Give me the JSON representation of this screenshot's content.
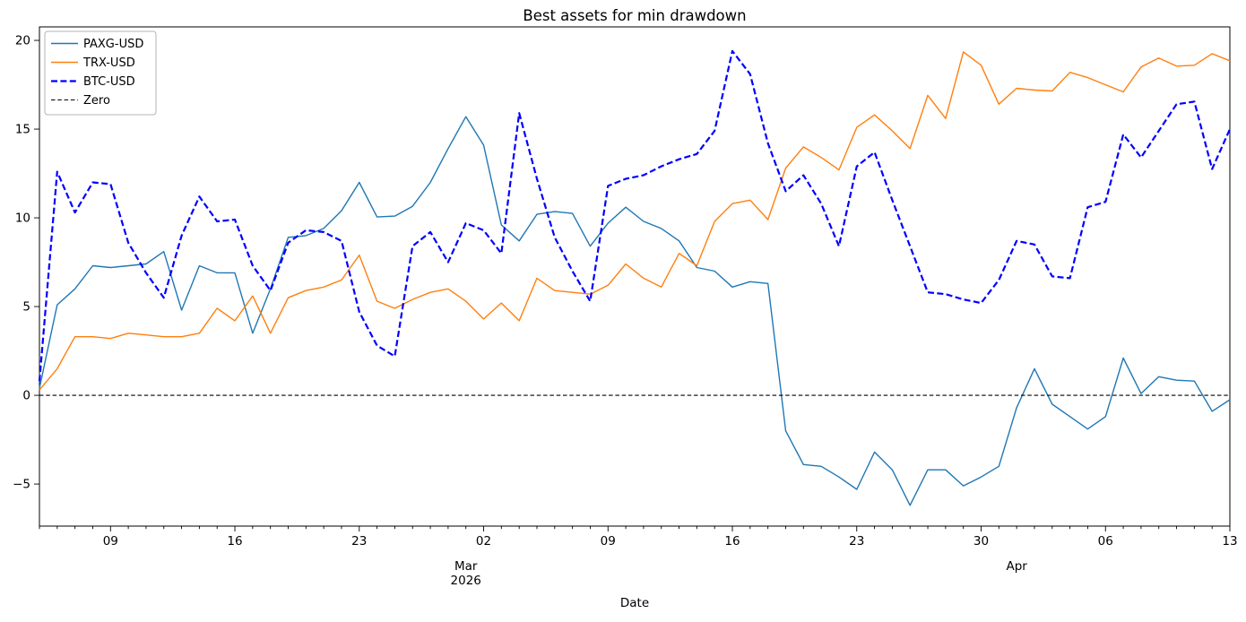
{
  "title": "Best assets for min drawdown",
  "xlabel": "Date",
  "legend": {
    "items": [
      {
        "label": "PAXG-USD",
        "color": "#1f77b4",
        "dash": "solid",
        "width": 1.5
      },
      {
        "label": "TRX-USD",
        "color": "#ff7f0e",
        "dash": "solid",
        "width": 1.5
      },
      {
        "label": "BTC-USD",
        "color": "#0000ff",
        "dash": "dashed",
        "width": 2.2
      },
      {
        "label": "Zero",
        "color": "#000000",
        "dash": "dashed",
        "width": 1.1
      }
    ]
  },
  "axes": {
    "ylim": [
      -7.37,
      20.76
    ],
    "y_ticks": [
      {
        "value": -5,
        "label": "−5"
      },
      {
        "value": 0,
        "label": "0"
      },
      {
        "value": 5,
        "label": "5"
      },
      {
        "value": 10,
        "label": "10"
      },
      {
        "value": 15,
        "label": "15"
      },
      {
        "value": 20,
        "label": "20"
      }
    ],
    "x_major_ticks": [
      {
        "day_index": 4,
        "label": "09"
      },
      {
        "day_index": 11,
        "label": "16"
      },
      {
        "day_index": 18,
        "label": "23"
      },
      {
        "day_index": 25,
        "label": "02"
      },
      {
        "day_index": 32,
        "label": "09"
      },
      {
        "day_index": 39,
        "label": "16"
      },
      {
        "day_index": 46,
        "label": "23"
      },
      {
        "day_index": 53,
        "label": "30"
      },
      {
        "day_index": 60,
        "label": "06"
      },
      {
        "day_index": 67,
        "label": "13"
      }
    ],
    "month_labels": [
      {
        "day_index": 24,
        "lines": [
          "Mar",
          "2026"
        ]
      },
      {
        "day_index": 55,
        "lines": [
          "Apr",
          ""
        ]
      }
    ]
  },
  "chart_data": {
    "type": "line",
    "title": "Best assets for min drawdown",
    "xlabel": "Date",
    "ylabel": "",
    "x_start_date": "2026-02-05",
    "x_end_date": "2026-04-13",
    "n_points": 68,
    "grid": false,
    "legend_position": "upper left",
    "zero_line": 0,
    "series": [
      {
        "name": "PAXG-USD",
        "color": "#1f77b4",
        "style": "solid",
        "values": [
          0.4,
          5.1,
          6.0,
          7.3,
          7.2,
          7.3,
          7.4,
          8.1,
          4.8,
          7.3,
          6.9,
          6.9,
          3.5,
          6.0,
          8.9,
          9.0,
          9.4,
          10.4,
          12.0,
          10.05,
          10.1,
          10.65,
          12.0,
          13.9,
          15.7,
          14.1,
          9.6,
          8.7,
          10.2,
          10.35,
          10.25,
          8.4,
          9.7,
          10.6,
          9.8,
          9.4,
          8.7,
          7.2,
          7.0,
          6.1,
          6.4,
          6.3,
          -2.0,
          -3.9,
          -4.0,
          -4.6,
          -5.3,
          -3.2,
          -4.2,
          -6.2,
          -4.2,
          -4.2,
          -5.1,
          -4.6,
          -4.0,
          -0.7,
          1.5,
          -0.5,
          -1.2,
          -1.9,
          -1.2,
          2.1,
          0.1,
          1.05,
          0.85,
          0.8,
          -0.9,
          -0.25
        ]
      },
      {
        "name": "TRX-USD",
        "color": "#ff7f0e",
        "style": "solid",
        "values": [
          0.3,
          1.5,
          3.3,
          3.3,
          3.2,
          3.5,
          3.4,
          3.3,
          3.3,
          3.5,
          4.9,
          4.2,
          5.6,
          3.5,
          5.5,
          5.9,
          6.1,
          6.5,
          7.9,
          5.3,
          4.9,
          5.4,
          5.8,
          6.0,
          5.3,
          4.3,
          5.2,
          4.2,
          6.6,
          5.9,
          5.8,
          5.7,
          6.2,
          7.4,
          6.6,
          6.1,
          8.0,
          7.3,
          9.8,
          10.8,
          11.0,
          9.9,
          12.8,
          14.0,
          13.4,
          12.7,
          15.1,
          15.8,
          14.9,
          13.9,
          16.9,
          15.6,
          19.35,
          18.6,
          16.4,
          17.3,
          17.2,
          17.15,
          18.2,
          17.9,
          17.5,
          17.1,
          18.5,
          19.0,
          18.55,
          18.6,
          19.25,
          18.85
        ]
      },
      {
        "name": "BTC-USD",
        "color": "#0000ff",
        "style": "dashed",
        "values": [
          0.8,
          12.6,
          10.3,
          12.0,
          11.9,
          8.6,
          6.9,
          5.5,
          9.0,
          11.2,
          9.8,
          9.9,
          7.3,
          5.9,
          8.6,
          9.3,
          9.2,
          8.7,
          4.7,
          2.8,
          2.2,
          8.4,
          9.2,
          7.5,
          9.7,
          9.3,
          8.0,
          15.9,
          12.2,
          8.9,
          7.0,
          5.3,
          11.8,
          12.2,
          12.4,
          12.9,
          13.3,
          13.6,
          14.9,
          19.4,
          18.1,
          14.2,
          11.5,
          12.4,
          10.8,
          8.4,
          12.9,
          13.7,
          11.0,
          8.4,
          5.8,
          5.7,
          5.4,
          5.2,
          6.5,
          8.7,
          8.5,
          6.7,
          6.6,
          10.6,
          10.9,
          14.7,
          13.4,
          14.9,
          16.4,
          16.55,
          12.75,
          15.0
        ]
      },
      {
        "name": "Zero",
        "color": "#000000",
        "style": "dashed",
        "values": "constant-0"
      }
    ]
  }
}
